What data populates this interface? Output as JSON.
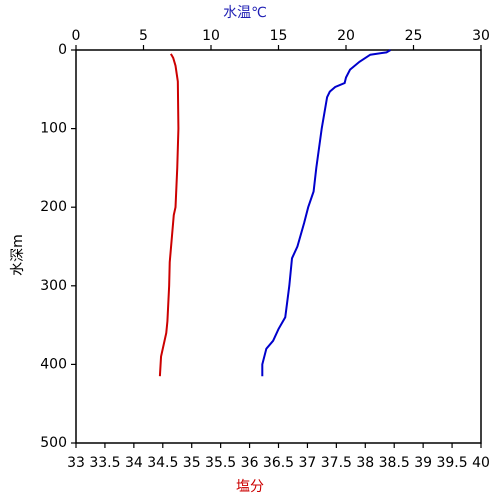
{
  "chart_data": {
    "type": "line",
    "x2label": "水温℃",
    "xlabel": "塩分",
    "ylabel": "水深m",
    "x2label_color": "#1f1fb4",
    "xlabel_color": "#cc0000",
    "ylim": [
      0,
      500
    ],
    "yticks": [
      0,
      100,
      200,
      300,
      400,
      500
    ],
    "y_inverted": true,
    "x2lim": [
      0,
      30
    ],
    "x2ticks": [
      0,
      5,
      10,
      15,
      20,
      25,
      30
    ],
    "xlim": [
      33,
      40
    ],
    "xticks": [
      33,
      33.5,
      34,
      34.5,
      35,
      35.5,
      36,
      36.5,
      37,
      37.5,
      38,
      38.5,
      39,
      39.5,
      40
    ],
    "series": [
      {
        "color": "#0000cc",
        "axis": "x2",
        "depth": [
          0,
          3,
          6,
          15,
          25,
          35,
          42,
          47,
          53,
          60,
          100,
          150,
          180,
          200,
          220,
          250,
          265,
          300,
          340,
          355,
          370,
          380,
          400,
          415
        ],
        "values": [
          23.3,
          23.0,
          21.8,
          21.0,
          20.3,
          20.0,
          19.9,
          19.2,
          18.8,
          18.6,
          18.2,
          17.8,
          17.6,
          17.2,
          16.9,
          16.4,
          16.0,
          15.8,
          15.5,
          15.0,
          14.6,
          14.1,
          13.8,
          13.8
        ]
      },
      {
        "color": "#cc0000",
        "axis": "x",
        "depth": [
          5,
          10,
          20,
          40,
          100,
          150,
          200,
          210,
          270,
          300,
          345,
          360,
          390,
          415
        ],
        "values": [
          34.64,
          34.68,
          34.72,
          34.76,
          34.77,
          34.75,
          34.72,
          34.69,
          34.62,
          34.61,
          34.58,
          34.56,
          34.47,
          34.45
        ]
      }
    ]
  }
}
